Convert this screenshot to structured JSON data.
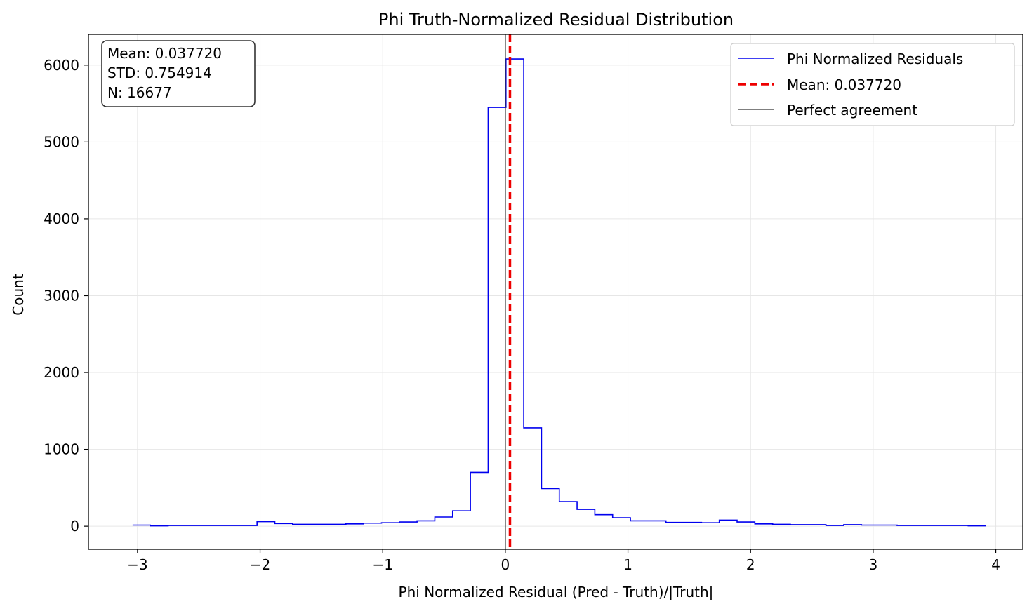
{
  "chart_data": {
    "type": "histogram",
    "title": "Phi Truth-Normalized Residual Distribution",
    "xlabel": "Phi Normalized Residual (Pred - Truth)/|Truth|",
    "ylabel": "Count",
    "xlim": [
      -3.4,
      4.22
    ],
    "ylim": [
      -300,
      6400
    ],
    "grid": true,
    "xticks": [
      -3,
      -2,
      -1,
      0,
      1,
      2,
      3,
      4
    ],
    "xtick_labels": [
      "−3",
      "−2",
      "−1",
      "0",
      "1",
      "2",
      "3",
      "4"
    ],
    "yticks": [
      0,
      1000,
      2000,
      3000,
      4000,
      5000,
      6000
    ],
    "ytick_labels": [
      "0",
      "1000",
      "2000",
      "3000",
      "4000",
      "5000",
      "6000"
    ],
    "bin_edges": [
      -3.04,
      -2.895,
      -2.75,
      -2.605,
      -2.46,
      -2.315,
      -2.17,
      -2.025,
      -1.88,
      -1.735,
      -1.59,
      -1.445,
      -1.3,
      -1.155,
      -1.01,
      -0.865,
      -0.72,
      -0.575,
      -0.43,
      -0.285,
      -0.14,
      0.005,
      0.15,
      0.295,
      0.44,
      0.585,
      0.73,
      0.875,
      1.02,
      1.165,
      1.31,
      1.455,
      1.6,
      1.745,
      1.89,
      2.035,
      2.18,
      2.325,
      2.47,
      2.615,
      2.76,
      2.905,
      3.05,
      3.195,
      3.34,
      3.485,
      3.63,
      3.775,
      3.92
    ],
    "counts": [
      15,
      5,
      10,
      10,
      10,
      10,
      10,
      60,
      35,
      25,
      25,
      25,
      30,
      40,
      45,
      55,
      70,
      120,
      200,
      700,
      5450,
      6080,
      1280,
      490,
      320,
      220,
      150,
      110,
      70,
      70,
      50,
      50,
      45,
      80,
      55,
      30,
      25,
      20,
      20,
      10,
      20,
      15,
      15,
      10,
      10,
      10,
      10,
      5
    ],
    "series": [
      {
        "name": "Phi Normalized Residuals",
        "color": "#0000ee",
        "style": "step"
      }
    ],
    "lines": [
      {
        "name": "Mean: 0.037720",
        "x": 0.03772,
        "color": "#ee0000",
        "style": "dashed"
      },
      {
        "name": "Perfect agreement",
        "x": 0,
        "color": "#333333",
        "style": "solid"
      }
    ],
    "legend_position": "top-right",
    "stats_box": {
      "position": "top-left",
      "lines": [
        "Mean: 0.037720",
        "STD: 0.754914",
        "N: 16677"
      ]
    }
  }
}
